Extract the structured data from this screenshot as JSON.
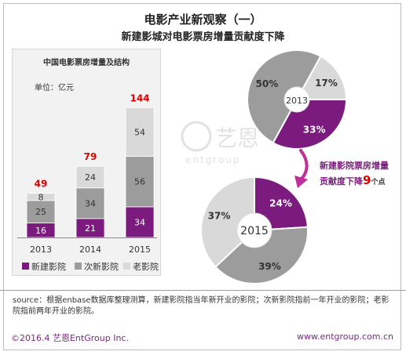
{
  "header": {
    "title": "电影产业新观察（一）",
    "subtitle": "新建影城对电影票房增量贡献度下降"
  },
  "watermark": {
    "name": "艺恩",
    "sub": "entgroup"
  },
  "chart_data": [
    {
      "type": "bar",
      "stacked": true,
      "title": "中国电影票房增量及结构",
      "unit_label": "单位：亿元",
      "categories": [
        "2013",
        "2014",
        "2015"
      ],
      "series": [
        {
          "name": "新建影院",
          "color": "#7b1b7e",
          "values": [
            16,
            21,
            34
          ]
        },
        {
          "name": "次新影院",
          "color": "#9c9c9c",
          "values": [
            25,
            34,
            56
          ]
        },
        {
          "name": "老影院",
          "color": "#d9d9d9",
          "values": [
            8,
            24,
            54
          ]
        }
      ],
      "totals": [
        49,
        79,
        144
      ],
      "total_color": "#e00000",
      "legend": "bottom"
    },
    {
      "type": "pie",
      "center_label": "2013",
      "slices": [
        {
          "label": "33%",
          "value": 33,
          "color": "#7b1b7e"
        },
        {
          "label": "50%",
          "value": 50,
          "color": "#9c9c9c"
        },
        {
          "label": "17%",
          "value": 17,
          "color": "#d9d9d9"
        }
      ]
    },
    {
      "type": "pie",
      "center_label": "2015",
      "slices": [
        {
          "label": "24%",
          "value": 24,
          "color": "#7b1b7e"
        },
        {
          "label": "39%",
          "value": 39,
          "color": "#9c9c9c"
        },
        {
          "label": "37%",
          "value": 37,
          "color": "#d9d9d9"
        }
      ]
    }
  ],
  "annotation": {
    "line1": "新建影院票房增量",
    "line2_prefix": "贡献度下降",
    "line2_value": "9",
    "line2_suffix": "个点"
  },
  "source": "source：根据enbase数据库整理测算，新建影院指当年新开业的影院；次新影院指前一年开业的影院；老影院指前两年开业的影院。",
  "footer": {
    "left": "©2016.4  艺恩EntGroup Inc.",
    "right": "www.entgroup.com.cn"
  }
}
